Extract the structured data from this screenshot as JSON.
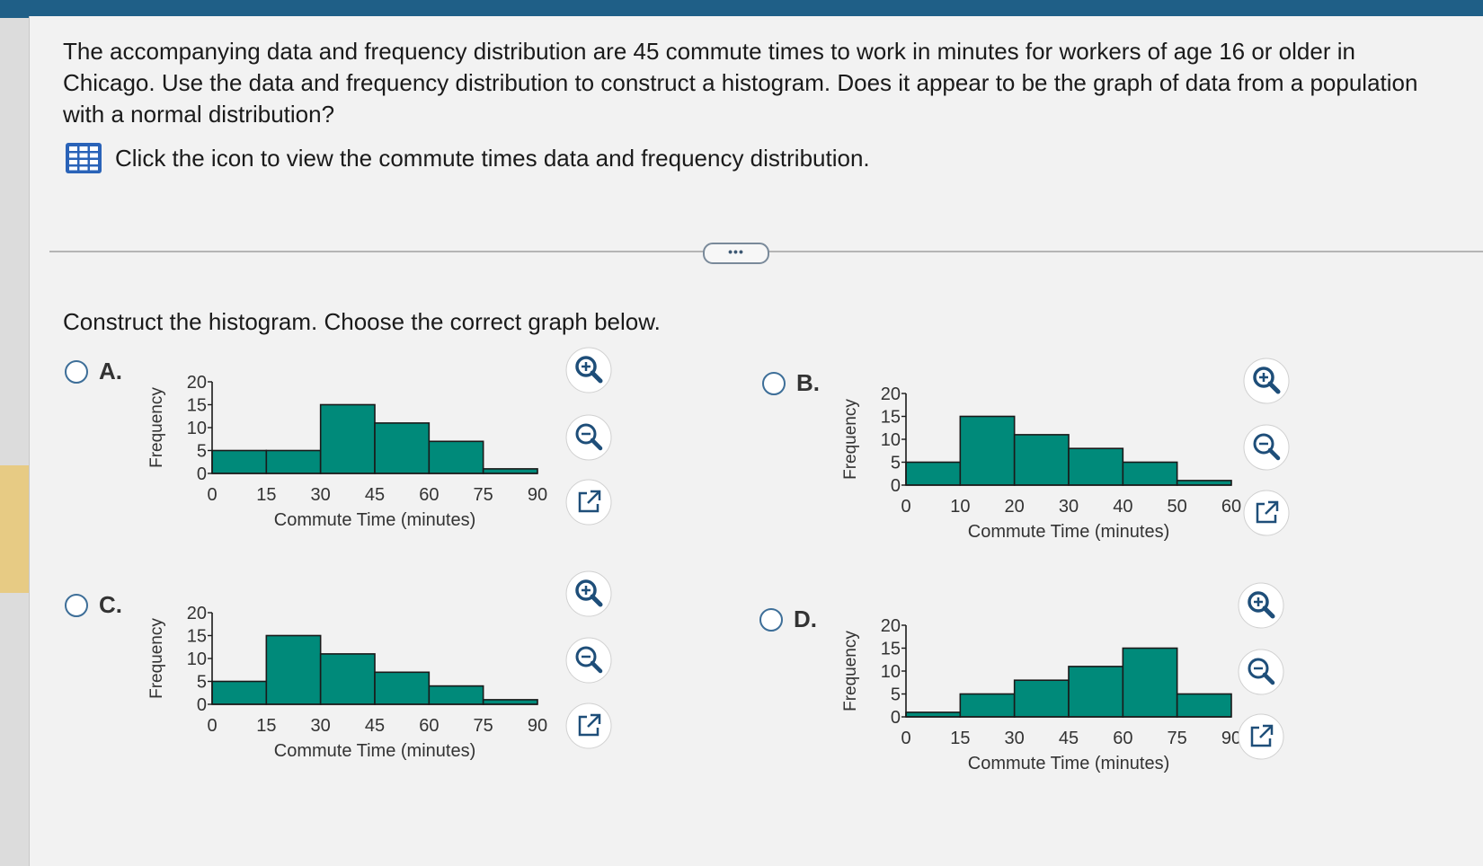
{
  "question": {
    "text": "The accompanying data and frequency distribution are 45 commute times to work in minutes for workers of age 16 or older in Chicago. Use the data and frequency distribution to construct a histogram. Does it appear to be the graph of data from a population with a normal distribution?",
    "data_link_label": "Click the icon to view the commute times data and frequency distribution.",
    "data_icon": "table-grid-icon"
  },
  "divider_button_label": "•••",
  "instruction": "Construct the histogram. Choose the correct graph below.",
  "options": [
    {
      "label": "A.",
      "selected": false
    },
    {
      "label": "B.",
      "selected": false
    },
    {
      "label": "C.",
      "selected": false
    },
    {
      "label": "D.",
      "selected": false
    }
  ],
  "tools": {
    "zoom_in": "zoom-in-icon",
    "zoom_out": "zoom-out-icon",
    "open": "open-external-icon"
  },
  "colors": {
    "bar_fill": "#008a7a",
    "radio": "#3d6e98",
    "tool_icon": "#1e4e79",
    "top_bar": "#1f5f87"
  },
  "chart_data": [
    {
      "option": "A.",
      "type": "bar",
      "xlabel": "Commute Time (minutes)",
      "ylabel": "Frequency",
      "xticks": [
        0,
        15,
        30,
        45,
        60,
        75,
        90
      ],
      "yticks": [
        0,
        5,
        10,
        15,
        20
      ],
      "ylim": [
        0,
        20
      ],
      "bins": [
        [
          0,
          15
        ],
        [
          15,
          30
        ],
        [
          30,
          45
        ],
        [
          45,
          60
        ],
        [
          60,
          75
        ],
        [
          75,
          90
        ]
      ],
      "values": [
        5,
        5,
        15,
        11,
        7,
        1
      ]
    },
    {
      "option": "B.",
      "type": "bar",
      "xlabel": "Commute Time (minutes)",
      "ylabel": "Frequency",
      "xticks": [
        0,
        10,
        20,
        30,
        40,
        50,
        60
      ],
      "yticks": [
        0,
        5,
        10,
        15,
        20
      ],
      "ylim": [
        0,
        20
      ],
      "bins": [
        [
          0,
          10
        ],
        [
          10,
          20
        ],
        [
          20,
          30
        ],
        [
          30,
          40
        ],
        [
          40,
          50
        ],
        [
          50,
          60
        ]
      ],
      "values": [
        5,
        15,
        11,
        8,
        5,
        1
      ]
    },
    {
      "option": "C.",
      "type": "bar",
      "xlabel": "Commute Time (minutes)",
      "ylabel": "Frequency",
      "xticks": [
        0,
        15,
        30,
        45,
        60,
        75,
        90
      ],
      "yticks": [
        0,
        5,
        10,
        15,
        20
      ],
      "ylim": [
        0,
        20
      ],
      "bins": [
        [
          0,
          15
        ],
        [
          15,
          30
        ],
        [
          30,
          45
        ],
        [
          45,
          60
        ],
        [
          60,
          75
        ],
        [
          75,
          90
        ]
      ],
      "values": [
        5,
        15,
        11,
        7,
        4,
        1
      ]
    },
    {
      "option": "D.",
      "type": "bar",
      "xlabel": "Commute Time (minutes)",
      "ylabel": "Frequency",
      "xticks": [
        0,
        15,
        30,
        45,
        60,
        75,
        90
      ],
      "yticks": [
        0,
        5,
        10,
        15,
        20
      ],
      "ylim": [
        0,
        20
      ],
      "bins": [
        [
          0,
          15
        ],
        [
          15,
          30
        ],
        [
          30,
          45
        ],
        [
          45,
          60
        ],
        [
          60,
          75
        ],
        [
          75,
          90
        ]
      ],
      "values": [
        1,
        5,
        8,
        11,
        15,
        5
      ]
    }
  ]
}
